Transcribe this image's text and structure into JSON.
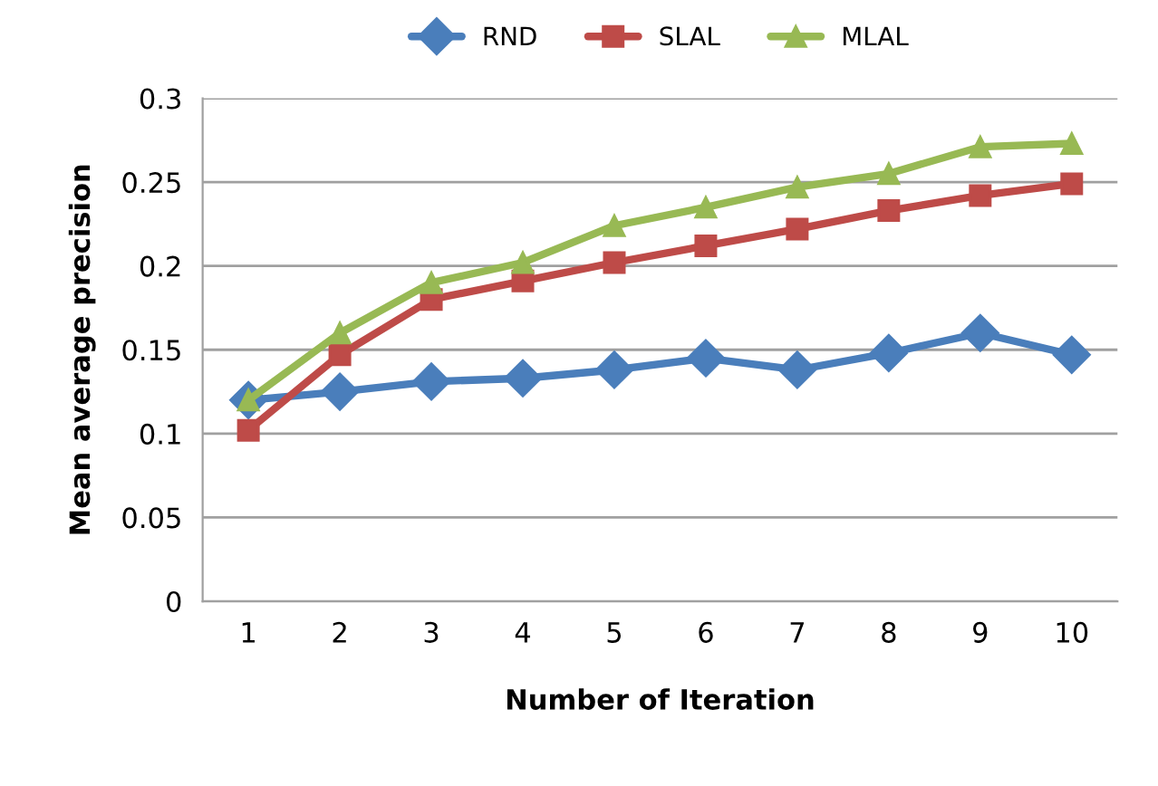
{
  "chart_data": {
    "type": "line",
    "xlabel": "Number of Iteration",
    "ylabel": "Mean average precision",
    "categories": [
      "1",
      "2",
      "3",
      "4",
      "5",
      "6",
      "7",
      "8",
      "9",
      "10"
    ],
    "series": [
      {
        "name": "RND",
        "color": "#4a7ebb",
        "marker": "diamond",
        "values": [
          0.12,
          0.125,
          0.131,
          0.133,
          0.138,
          0.145,
          0.138,
          0.148,
          0.16,
          0.147
        ]
      },
      {
        "name": "SLAL",
        "color": "#be4b48",
        "marker": "square",
        "values": [
          0.102,
          0.147,
          0.18,
          0.191,
          0.202,
          0.212,
          0.222,
          0.233,
          0.242,
          0.249
        ]
      },
      {
        "name": "MLAL",
        "color": "#98b954",
        "marker": "triangle",
        "values": [
          0.12,
          0.16,
          0.19,
          0.202,
          0.224,
          0.235,
          0.247,
          0.255,
          0.271,
          0.273
        ]
      }
    ],
    "ylim": [
      0,
      0.3
    ],
    "yticks": [
      0,
      0.05,
      0.1,
      0.15,
      0.2,
      0.25,
      0.3
    ],
    "grid": "y",
    "legend": "top"
  }
}
